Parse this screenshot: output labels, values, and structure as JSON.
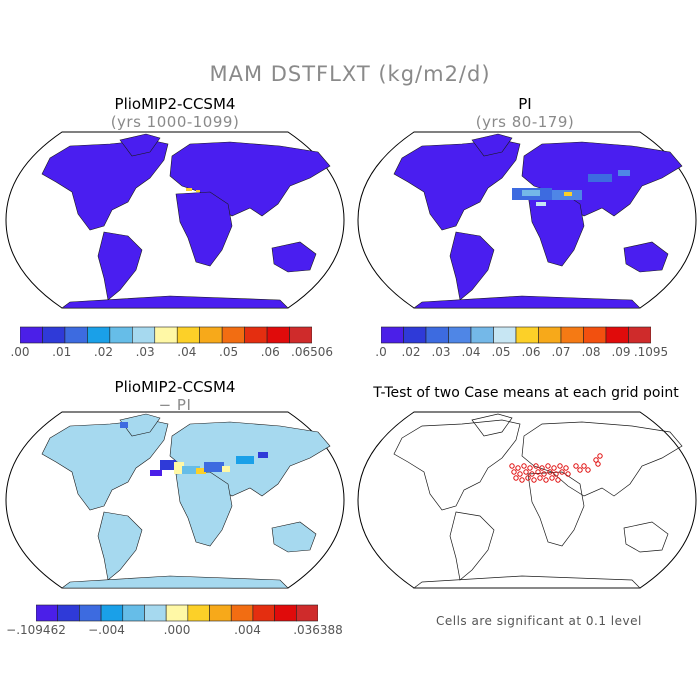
{
  "title": "MAM DSTFLXT (kg/m2/d)",
  "panels": {
    "top_left": {
      "title": "PlioMIP2-CCSM4",
      "subtitle": "(yrs 1000-1099)",
      "colorbar": {
        "colors": [
          "#4b1fe8",
          "#2f3ad8",
          "#3d6be0",
          "#1aa0e8",
          "#66bde8",
          "#a6d9ef",
          "#fff8a6",
          "#fcd028",
          "#f7a91a",
          "#f26d12",
          "#e42e10",
          "#e00b0b",
          "#cf2b2b"
        ],
        "labels": [
          ".00",
          ".01",
          ".02",
          ".03",
          ".04",
          ".05",
          ".06",
          ".06506"
        ]
      }
    },
    "top_right": {
      "title": "PI",
      "subtitle": "(yrs 80-179)",
      "colorbar": {
        "colors": [
          "#4b1fe8",
          "#2f3ad8",
          "#3d6be0",
          "#4f86e6",
          "#74b8e8",
          "#c7e6f3",
          "#fcd028",
          "#f7a91a",
          "#f57a14",
          "#f2500f",
          "#e00b0b",
          "#cf2b2b"
        ],
        "labels": [
          ".0",
          ".02",
          ".03",
          ".04",
          ".05",
          ".06",
          ".07",
          ".08",
          ".09",
          ".1095"
        ]
      }
    },
    "bottom_left": {
      "title": "PlioMIP2-CCSM4",
      "subtitle": "− PI",
      "colorbar": {
        "colors": [
          "#4b1fe8",
          "#2f3ad8",
          "#3d6be0",
          "#1aa0e8",
          "#66bde8",
          "#a6d9ef",
          "#fff8a6",
          "#fcd028",
          "#f7a91a",
          "#f26d12",
          "#e42e10",
          "#e00b0b",
          "#cf2b2b"
        ],
        "labels": [
          "−.109462",
          "−.004",
          ".000",
          ".004",
          ".036388"
        ]
      }
    },
    "bottom_right": {
      "title": "T-Test of two Case means at each grid point",
      "note": "Cells are significant at 0.1 level"
    }
  }
}
